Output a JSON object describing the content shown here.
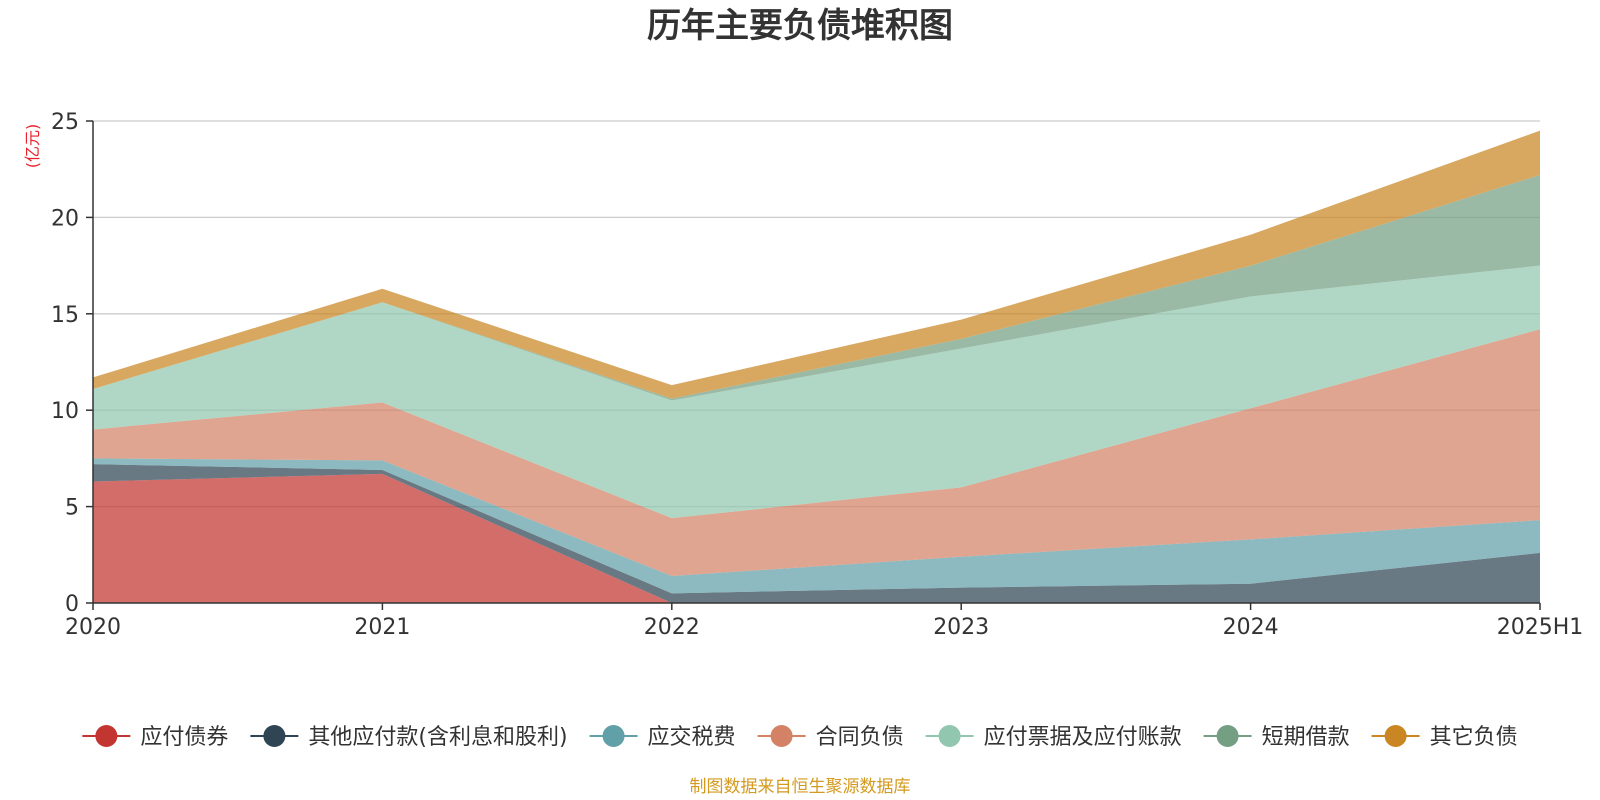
{
  "chart_data": {
    "type": "area",
    "stacked": true,
    "title": "历年主要负债堆积图",
    "unit_label": "(亿元)",
    "source_note": "制图数据来自恒生聚源数据库",
    "categories": [
      "2020",
      "2021",
      "2022",
      "2023",
      "2024",
      "2025H1"
    ],
    "ylim": [
      0,
      25
    ],
    "yticks": [
      0,
      5,
      10,
      15,
      20,
      25
    ],
    "grid": true,
    "legend_position": "bottom",
    "series": [
      {
        "name": "应付债券",
        "values": [
          6.3,
          6.7,
          0.0,
          0.0,
          0.0,
          0.0
        ],
        "color": "#c23531"
      },
      {
        "name": "其他应付款(含利息和股利)",
        "values": [
          0.9,
          0.2,
          0.5,
          0.8,
          1.0,
          2.6
        ],
        "color": "#2f4554"
      },
      {
        "name": "应交税费",
        "values": [
          0.3,
          0.5,
          0.9,
          1.6,
          2.3,
          1.7
        ],
        "color": "#61a0a8"
      },
      {
        "name": "合同负债",
        "values": [
          1.5,
          3.0,
          3.0,
          3.6,
          6.8,
          9.9
        ],
        "color": "#d48265"
      },
      {
        "name": "应付票据及应付账款",
        "values": [
          2.1,
          5.2,
          6.1,
          7.2,
          5.8,
          3.3
        ],
        "color": "#91c7ae"
      },
      {
        "name": "短期借款",
        "values": [
          0.0,
          0.0,
          0.1,
          0.5,
          1.6,
          4.7
        ],
        "color": "#749f83"
      },
      {
        "name": "其它负债",
        "values": [
          0.6,
          0.7,
          0.7,
          1.0,
          1.6,
          2.3
        ],
        "color": "#ca8622"
      }
    ]
  }
}
